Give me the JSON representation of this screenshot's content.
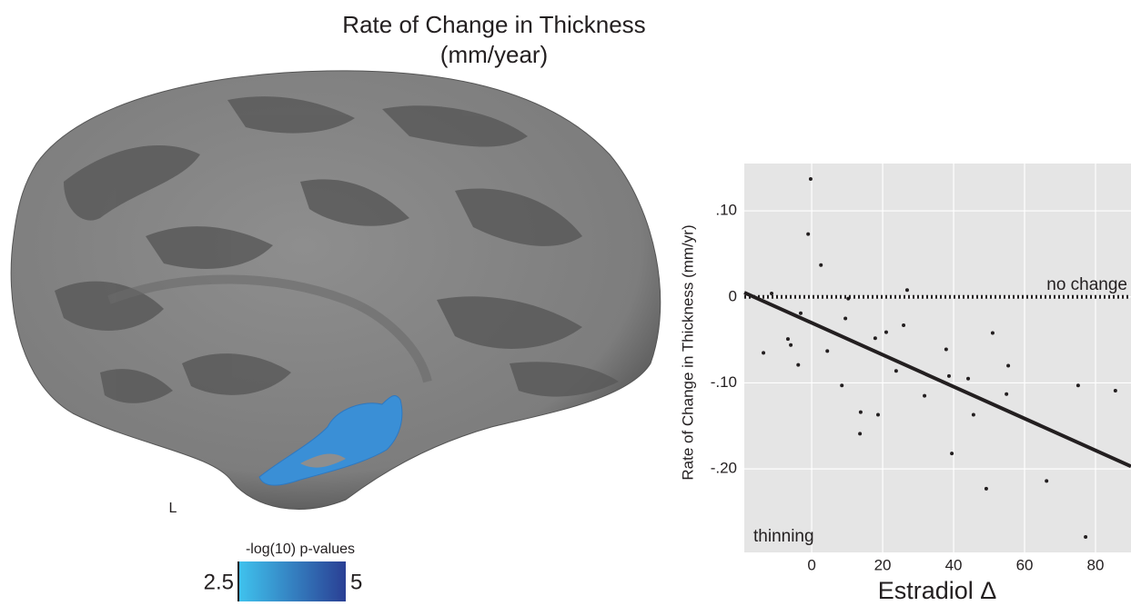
{
  "figure": {
    "title_lines": [
      "Rate of Change in Thickness",
      "(mm/year)"
    ],
    "hemisphere_label": "L",
    "colorbar": {
      "title": "-log(10) p-values",
      "range": [
        2.5,
        5
      ],
      "ticks": [
        2.5,
        5
      ],
      "colors": [
        "#3fc3ee",
        "#2a3f94"
      ]
    }
  },
  "chart_data": {
    "type": "scatter",
    "x_label": "Estradiol Δ",
    "y_label": "Rate of Change in Thickness (mm/yr)",
    "xlim": [
      -19,
      90
    ],
    "ylim": [
      -0.297,
      0.155
    ],
    "xticks": [
      0,
      20,
      40,
      60,
      80
    ],
    "yticks": [
      {
        "value": 0.1,
        "label": ".10"
      },
      0,
      {
        "value": -0.1,
        "label": "-.10"
      },
      {
        "value": -0.2,
        "label": "-.20"
      }
    ],
    "grid": true,
    "color": "#231f20",
    "x": [
      -0.3,
      -1,
      2.6,
      -11.3,
      -13.6,
      -6.7,
      -5.9,
      -3.8,
      -3.1,
      4.4,
      9.5,
      10.3,
      8.5,
      13.8,
      13.6,
      17.9,
      18.7,
      21,
      23.8,
      25.9,
      26.9,
      31.8,
      37.9,
      38.7,
      39.5,
      44.1,
      45.6,
      49.2,
      51,
      54.9,
      55.4,
      66.2,
      75.1,
      77.2,
      85.6
    ],
    "values": [
      0.137,
      0.073,
      0.037,
      0.004,
      -0.065,
      -0.049,
      -0.056,
      -0.079,
      -0.019,
      -0.063,
      -0.025,
      -0.002,
      -0.103,
      -0.134,
      -0.159,
      -0.048,
      -0.137,
      -0.041,
      -0.086,
      -0.033,
      0.008,
      -0.115,
      -0.061,
      -0.092,
      -0.182,
      -0.095,
      -0.137,
      -0.223,
      -0.042,
      -0.113,
      -0.08,
      -0.214,
      -0.103,
      -0.279,
      -0.109
    ],
    "fit": {
      "x": [
        -19,
        90
      ],
      "y": [
        0.005,
        -0.197
      ]
    },
    "reference_line": {
      "value": 0,
      "label": "no change"
    },
    "annotation": "thinning"
  }
}
